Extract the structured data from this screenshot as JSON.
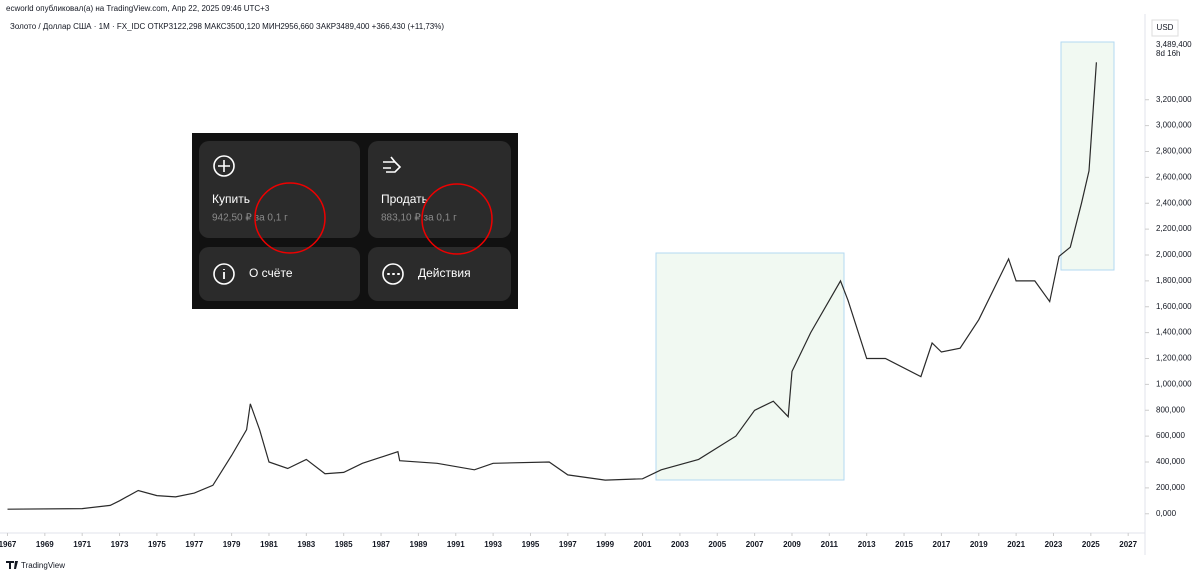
{
  "header": {
    "publisher": "ecworld опубликовал(а) на TradingView.com, Апр 22, 2025 09:46 UTC+3",
    "symbol_line": "Золото / Доллар США · 1M · FX_IDC   ОТКР3122,298   МАКС3500,120   МИН2956,660   ЗАКР3489,400   +366,430 (+11,73%)",
    "currency": "USD"
  },
  "chart_data": {
    "type": "line",
    "color": "#2a2a2a",
    "x": [
      1967,
      1971,
      1972.5,
      1973,
      1974,
      1975,
      1976,
      1977,
      1978,
      1979,
      1979.8,
      1980,
      1980.5,
      1981,
      1982,
      1983,
      1984,
      1985,
      1986,
      1987.9,
      1988,
      1990,
      1992,
      1993,
      1996,
      1997,
      1999,
      2001,
      2002,
      2004,
      2006,
      2007,
      2008,
      2008.8,
      2009,
      2010,
      2011.6,
      2012,
      2013,
      2014,
      2015.9,
      2016.5,
      2017,
      2018,
      2019,
      2020.6,
      2021,
      2022,
      2022.8,
      2023.3,
      2023.9,
      2024.5,
      2024.9,
      2025.3
    ],
    "values": [
      35000,
      40000,
      65000,
      100000,
      180000,
      140000,
      130000,
      160000,
      220000,
      450000,
      650000,
      850000,
      650000,
      400000,
      350000,
      420000,
      310000,
      320000,
      390000,
      480000,
      410000,
      390000,
      340000,
      390000,
      400000,
      300000,
      260000,
      270000,
      340000,
      420000,
      600000,
      800000,
      870000,
      750000,
      1100000,
      1400000,
      1800000,
      1650000,
      1200000,
      1200000,
      1060000,
      1320000,
      1250000,
      1280000,
      1500000,
      1970000,
      1800000,
      1800000,
      1640000,
      1990000,
      2060000,
      2400000,
      2650000,
      3489400
    ],
    "xlim": [
      1966.6,
      2027.9
    ],
    "ylim": [
      -148700,
      3739000
    ],
    "xticks": [
      1967,
      1969,
      1971,
      1973,
      1975,
      1977,
      1979,
      1981,
      1983,
      1985,
      1987,
      1989,
      1991,
      1993,
      1995,
      1997,
      1999,
      2001,
      2003,
      2005,
      2007,
      2009,
      2011,
      2013,
      2015,
      2017,
      2019,
      2021,
      2023,
      2025,
      2027
    ],
    "yticks": [
      {
        "value": 0,
        "label": "0,000"
      },
      {
        "value": 200000,
        "label": "200,000"
      },
      {
        "value": 400000,
        "label": "400,000"
      },
      {
        "value": 600000,
        "label": "600,000"
      },
      {
        "value": 800000,
        "label": "800,000"
      },
      {
        "value": 1000000,
        "label": "1,000,000"
      },
      {
        "value": 1200000,
        "label": "1,200,000"
      },
      {
        "value": 1400000,
        "label": "1,400,000"
      },
      {
        "value": 1600000,
        "label": "1,600,000"
      },
      {
        "value": 1800000,
        "label": "1,800,000"
      },
      {
        "value": 2000000,
        "label": "2,000,000"
      },
      {
        "value": 2200000,
        "label": "2,200,000"
      },
      {
        "value": 2400000,
        "label": "2,400,000"
      },
      {
        "value": 2600000,
        "label": "2,600,000"
      },
      {
        "value": 2800000,
        "label": "2,800,000"
      },
      {
        "value": 3000000,
        "label": "3,000,000"
      },
      {
        "value": 3200000,
        "label": "3,200,000"
      }
    ],
    "last_price": {
      "value": 3489400,
      "label": "3,489,400"
    },
    "countdown": "8d 16h"
  },
  "overlay": {
    "buy": {
      "title": "Купить",
      "price": "942,50 ₽ за 0,1 г"
    },
    "sell": {
      "title": "Продать",
      "price": "883,10 ₽ за 0,1 г"
    },
    "account": "О счёте",
    "actions": "Действия"
  },
  "footer": {
    "brand": "TradingView"
  }
}
